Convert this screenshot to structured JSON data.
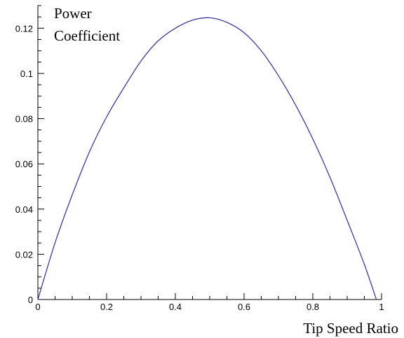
{
  "chart_data": {
    "type": "line",
    "xlabel": "Tip Speed Ratio",
    "ylabel_lines": [
      "Power",
      "Coefficient"
    ],
    "xlim": [
      0,
      1
    ],
    "ylim": [
      0,
      0.13
    ],
    "x_ticks": [
      0,
      0.2,
      0.4,
      0.6,
      0.8,
      1
    ],
    "x_tick_labels": [
      "0",
      "0.2",
      "0.4",
      "0.6",
      "0.8",
      "1"
    ],
    "y_ticks": [
      0,
      0.02,
      0.04,
      0.06,
      0.08,
      0.1,
      0.12
    ],
    "y_tick_labels": [
      "0",
      "0.02",
      "0.04",
      "0.06",
      "0.08",
      "0.1",
      "0.12"
    ],
    "grid": false,
    "series": [
      {
        "color": "#3a3aa0",
        "x": [
          0,
          0.05,
          0.1,
          0.15,
          0.2,
          0.25,
          0.3,
          0.35,
          0.4,
          0.45,
          0.5,
          0.55,
          0.6,
          0.65,
          0.7,
          0.75,
          0.8,
          0.85,
          0.9,
          0.95,
          0.985
        ],
        "y": [
          0,
          0.0251,
          0.0463,
          0.0653,
          0.0808,
          0.0936,
          0.1055,
          0.1144,
          0.12,
          0.1236,
          0.1246,
          0.1226,
          0.118,
          0.11,
          0.099,
          0.086,
          0.071,
          0.054,
          0.035,
          0.0155,
          0
        ]
      }
    ]
  }
}
